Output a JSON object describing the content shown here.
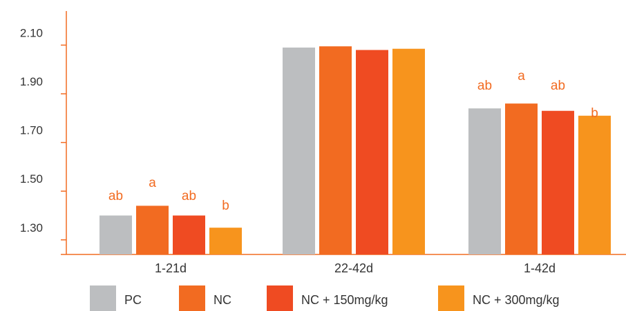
{
  "chart_data": {
    "type": "bar",
    "categories": [
      "1-21d",
      "22-42d",
      "1-42d"
    ],
    "yticks": [
      "1.30",
      "1.50",
      "1.70",
      "1.90",
      "2.10"
    ],
    "ylim": [
      1.24,
      2.24
    ],
    "series": [
      {
        "name": "PC",
        "color": "#bcbec0",
        "values": [
          1.4,
          2.09,
          1.84
        ],
        "labels": [
          "",
          "",
          ""
        ]
      },
      {
        "name": "NC",
        "color": "#f26b21",
        "values": [
          1.44,
          2.095,
          1.86
        ],
        "labels": [
          "a",
          "",
          "a"
        ]
      },
      {
        "name": "NC + 150mg/kg",
        "color": "#ef4b22",
        "values": [
          1.4,
          2.08,
          1.83
        ],
        "labels": [
          "ab",
          "",
          "ab"
        ]
      },
      {
        "name": "NC + 300mg/kg",
        "color": "#f7941d",
        "values": [
          1.35,
          2.085,
          1.81
        ],
        "labels": [
          "b",
          "",
          "b"
        ]
      }
    ],
    "sig_labels_pc": [
      "ab",
      "",
      "ab"
    ],
    "axis_color": "#f26b21",
    "sig_color": "#f26b21",
    "legend_position": "bottom"
  }
}
